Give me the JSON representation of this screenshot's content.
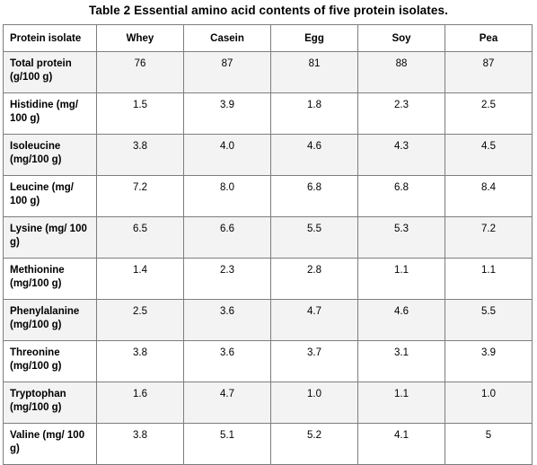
{
  "title": "Table 2  Essential amino acid contents of five protein isolates.",
  "table": {
    "header": [
      "Protein isolate",
      "Whey",
      "Casein",
      "Egg",
      "Soy",
      "Pea"
    ],
    "rows": [
      {
        "label": "Total protein (g/100 g)",
        "values": [
          "76",
          "87",
          "81",
          "88",
          "87"
        ]
      },
      {
        "label": "Histidine (mg/ 100 g)",
        "values": [
          "1.5",
          "3.9",
          "1.8",
          "2.3",
          "2.5"
        ]
      },
      {
        "label": "Isoleucine (mg/100 g)",
        "values": [
          "3.8",
          "4.0",
          "4.6",
          "4.3",
          "4.5"
        ]
      },
      {
        "label": "Leucine (mg/ 100 g)",
        "values": [
          "7.2",
          "8.0",
          "6.8",
          "6.8",
          "8.4"
        ]
      },
      {
        "label": "Lysine (mg/ 100 g)",
        "values": [
          "6.5",
          "6.6",
          "5.5",
          "5.3",
          "7.2"
        ]
      },
      {
        "label": "Methionine (mg/100 g)",
        "values": [
          "1.4",
          "2.3",
          "2.8",
          "1.1",
          "1.1"
        ]
      },
      {
        "label": "Phenylalanine (mg/100 g)",
        "values": [
          "2.5",
          "3.6",
          "4.7",
          "4.6",
          "5.5"
        ]
      },
      {
        "label": "Threonine (mg/100 g)",
        "values": [
          "3.8",
          "3.6",
          "3.7",
          "3.1",
          "3.9"
        ]
      },
      {
        "label": "Tryptophan (mg/100 g)",
        "values": [
          "1.6",
          "4.7",
          "1.0",
          "1.1",
          "1.0"
        ]
      },
      {
        "label": "Valine (mg/ 100 g)",
        "values": [
          "3.8",
          "5.1",
          "5.2",
          "4.1",
          "5"
        ]
      }
    ]
  }
}
